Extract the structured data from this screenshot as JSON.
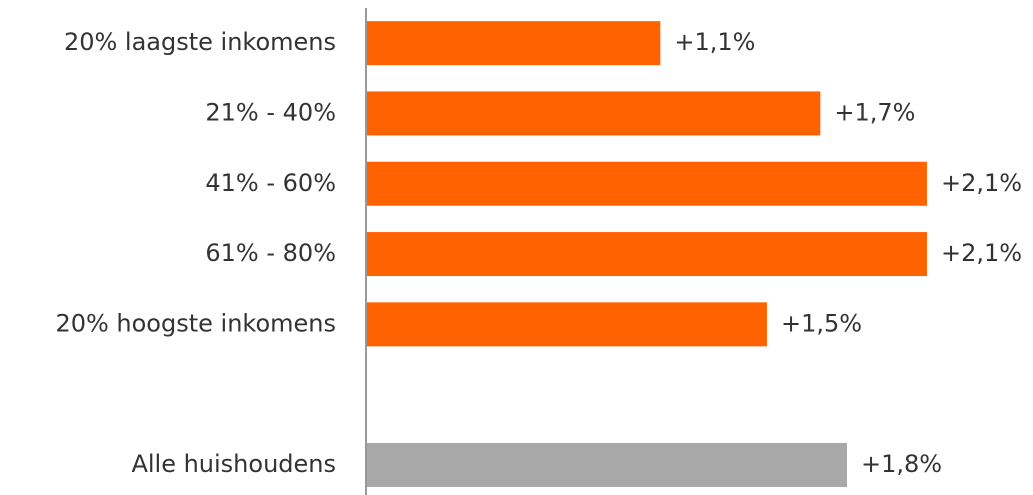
{
  "chart_data": {
    "type": "bar",
    "orientation": "horizontal",
    "categories": [
      "20% laagste inkomens",
      "21% - 40%",
      "41% - 60%",
      "61% - 80%",
      "20% hoogste inkomens",
      null,
      "Alle huishoudens"
    ],
    "values": [
      1.1,
      1.7,
      2.1,
      2.1,
      1.5,
      null,
      1.8
    ],
    "value_labels": [
      "+1,1%",
      "+1,7%",
      "+2,1%",
      "+2,1%",
      "+1,5%",
      null,
      "+1,8%"
    ],
    "colors": [
      "#ff6200",
      "#ff6200",
      "#ff6200",
      "#ff6200",
      "#ff6200",
      null,
      "#a8a8a8"
    ]
  }
}
